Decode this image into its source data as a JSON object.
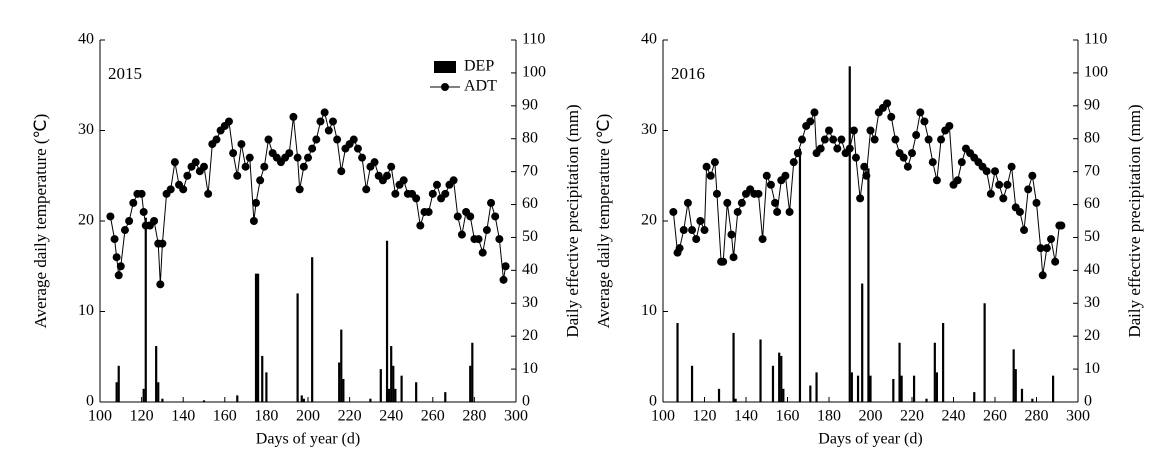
{
  "chart_data": [
    {
      "type": "bar_line",
      "annotation": "2015",
      "xlabel": "Days of year (d)",
      "ylabel": "Average daily temperature (℃)",
      "y2label": "Daily effective precipitation (mm)",
      "xlim": [
        100,
        300
      ],
      "xticks": [
        100,
        120,
        140,
        160,
        180,
        200,
        220,
        240,
        260,
        280,
        300
      ],
      "ylim": [
        0,
        40
      ],
      "yticks": [
        0,
        10,
        20,
        30,
        40
      ],
      "y2lim": [
        0,
        110
      ],
      "y2ticks": [
        0,
        10,
        20,
        30,
        40,
        50,
        60,
        70,
        80,
        90,
        100,
        110
      ],
      "legend": "upper right",
      "series": [
        {
          "name": "DEP",
          "type": "bar",
          "axis": "y2",
          "color": "#000000",
          "x": [
            108,
            109,
            121,
            122,
            127,
            128,
            130,
            150,
            166,
            175,
            176,
            178,
            180,
            195,
            197,
            198,
            202,
            215,
            216,
            217,
            230,
            235,
            238,
            239,
            240,
            241,
            242,
            245,
            252,
            266,
            278,
            279
          ],
          "values": [
            6,
            11,
            4,
            56,
            17,
            6,
            1,
            0.5,
            2,
            39,
            39,
            14,
            9,
            33,
            2,
            1,
            44,
            12,
            22,
            7,
            1,
            10,
            49,
            4,
            17,
            11,
            4,
            8,
            6,
            3,
            11,
            18
          ]
        },
        {
          "name": "ADT",
          "type": "line",
          "color": "#000000",
          "x": [
            105,
            107,
            108,
            109,
            110,
            112,
            114,
            116,
            118,
            120,
            121,
            122,
            124,
            126,
            128,
            129,
            130,
            132,
            134,
            136,
            138,
            140,
            142,
            144,
            146,
            148,
            150,
            152,
            154,
            156,
            158,
            160,
            162,
            164,
            166,
            168,
            170,
            172,
            174,
            175,
            177,
            179,
            181,
            183,
            185,
            187,
            189,
            191,
            193,
            195,
            196,
            198,
            200,
            202,
            204,
            206,
            208,
            210,
            212,
            214,
            216,
            218,
            220,
            222,
            224,
            226,
            228,
            230,
            232,
            234,
            236,
            238,
            240,
            242,
            244,
            246,
            248,
            250,
            252,
            254,
            256,
            258,
            260,
            262,
            264,
            266,
            268,
            270,
            272,
            274,
            276,
            278,
            280,
            282,
            284,
            286,
            288,
            290,
            292,
            294,
            295
          ],
          "values": [
            20.5,
            18,
            16,
            14,
            15,
            19,
            20,
            22,
            23,
            23,
            21,
            19.5,
            19.5,
            20,
            17.5,
            13,
            17.5,
            23,
            23.5,
            26.5,
            24,
            23.5,
            25,
            26,
            26.5,
            25.5,
            26,
            23,
            28.5,
            29,
            30,
            30.5,
            31,
            27.5,
            25,
            28.5,
            26,
            27,
            20,
            22,
            24.5,
            26,
            29,
            27.5,
            27,
            26.5,
            27,
            27.5,
            31.5,
            27,
            23.5,
            26,
            27,
            28,
            29,
            31,
            32,
            30,
            31,
            29,
            25.5,
            28,
            28.5,
            29,
            28,
            27,
            23.5,
            26,
            26.5,
            25,
            24.5,
            25,
            26,
            23,
            24,
            24.5,
            23,
            23,
            22.5,
            19.5,
            21,
            21,
            23,
            24,
            22.5,
            23,
            24,
            24.5,
            20.5,
            18.5,
            21,
            20.5,
            18,
            18,
            16.5,
            19,
            22,
            20.5,
            18,
            13.5,
            15
          ]
        }
      ]
    },
    {
      "type": "bar_line",
      "annotation": "2016",
      "xlabel": "Days of year (d)",
      "ylabel": "Average daily temperature (℃)",
      "y2label": "Daily effective precipitation (mm)",
      "xlim": [
        100,
        300
      ],
      "xticks": [
        100,
        120,
        140,
        160,
        180,
        200,
        220,
        240,
        260,
        280,
        300
      ],
      "ylim": [
        0,
        40
      ],
      "yticks": [
        0,
        10,
        20,
        30,
        40
      ],
      "y2lim": [
        0,
        110
      ],
      "y2ticks": [
        0,
        10,
        20,
        30,
        40,
        50,
        60,
        70,
        80,
        90,
        100,
        110
      ],
      "series": [
        {
          "type": "bar",
          "axis": "y2",
          "color": "#000000",
          "x": [
            107,
            114,
            127,
            134,
            135,
            147,
            153,
            156,
            157,
            158,
            166,
            171,
            174,
            190,
            191,
            194,
            196,
            199,
            200,
            211,
            214,
            215,
            221,
            227,
            231,
            232,
            235,
            250,
            255,
            269,
            270,
            273,
            278,
            288
          ],
          "values": [
            24,
            11,
            4,
            21,
            1,
            19,
            11,
            15,
            14,
            4,
            77,
            5,
            9,
            102,
            9,
            8,
            36,
            71,
            8,
            7,
            18,
            8,
            8,
            1,
            18,
            9,
            24,
            3,
            30,
            16,
            10,
            4,
            1,
            8
          ]
        },
        {
          "type": "line",
          "color": "#000000",
          "x": [
            105,
            107,
            108,
            110,
            112,
            114,
            116,
            118,
            120,
            121,
            123,
            125,
            126,
            128,
            129,
            131,
            133,
            134,
            136,
            138,
            140,
            142,
            144,
            146,
            148,
            150,
            152,
            154,
            155,
            157,
            159,
            161,
            163,
            165,
            167,
            169,
            171,
            173,
            174,
            176,
            178,
            180,
            182,
            184,
            186,
            188,
            190,
            192,
            193,
            195,
            197,
            198,
            200,
            202,
            204,
            206,
            208,
            210,
            212,
            214,
            216,
            218,
            220,
            222,
            224,
            226,
            228,
            230,
            232,
            234,
            236,
            238,
            240,
            242,
            244,
            246,
            248,
            250,
            252,
            254,
            256,
            258,
            260,
            262,
            264,
            266,
            268,
            270,
            272,
            274,
            276,
            278,
            280,
            282,
            283,
            285,
            287,
            289,
            291,
            292
          ],
          "values": [
            21,
            16.5,
            17,
            19,
            22,
            19,
            18,
            20,
            19,
            26,
            25,
            26.5,
            23,
            15.5,
            15.5,
            22,
            18.5,
            16,
            21,
            22,
            23,
            23.5,
            23,
            23,
            18,
            25,
            24,
            22,
            21,
            24.5,
            25,
            21,
            26.5,
            27.5,
            29,
            30.5,
            31,
            32,
            27.5,
            28,
            29,
            30,
            29,
            28,
            29,
            27.5,
            28,
            30,
            27,
            22.5,
            26,
            25,
            30,
            29,
            32,
            32.5,
            33,
            31.5,
            29,
            27.5,
            27,
            26,
            27.5,
            29.5,
            32,
            31,
            29,
            26.5,
            24.5,
            29,
            30,
            30.5,
            24,
            24.5,
            26.5,
            28,
            27.5,
            27,
            26.5,
            26,
            25.5,
            23,
            25.5,
            24,
            22.5,
            24,
            26,
            21.5,
            21,
            19,
            23.5,
            25,
            22,
            17,
            14,
            17,
            18,
            15.5,
            19.5,
            19.5
          ]
        }
      ]
    }
  ]
}
